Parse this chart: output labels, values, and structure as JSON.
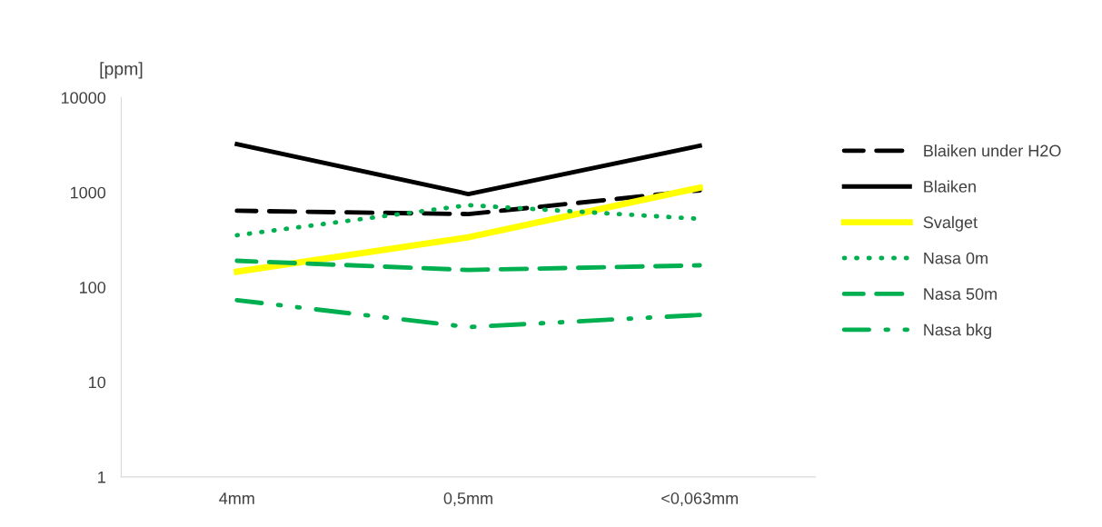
{
  "chart_data": {
    "type": "line",
    "ylabel": "[ppm]",
    "categories": [
      "4mm",
      "0,5mm",
      "<0,063mm"
    ],
    "log": "y",
    "ylim": [
      1,
      10000
    ],
    "yticks": [
      1,
      10,
      100,
      1000,
      10000
    ],
    "grid": false,
    "legend": "right",
    "marker": "none",
    "series": [
      {
        "name": "Blaiken under H2O",
        "color": "#000000",
        "line_style": "dashed",
        "values": [
          640,
          590,
          1050
        ]
      },
      {
        "name": "Blaiken",
        "color": "#000000",
        "line_style": "solid",
        "values": [
          3230,
          960,
          3100
        ]
      },
      {
        "name": "Svalget",
        "color": "#ffff00",
        "line_style": "solid",
        "values": [
          146,
          336,
          1120
        ]
      },
      {
        "name": "Nasa 0m",
        "color": "#00b050",
        "line_style": "dotted",
        "values": [
          353,
          733,
          526
        ]
      },
      {
        "name": "Nasa 50m",
        "color": "#00b050",
        "line_style": "dashed",
        "values": [
          190,
          152,
          170
        ]
      },
      {
        "name": "Nasa bkg",
        "color": "#00b050",
        "line_style": "dashdot",
        "values": [
          73,
          38,
          51
        ]
      }
    ]
  }
}
